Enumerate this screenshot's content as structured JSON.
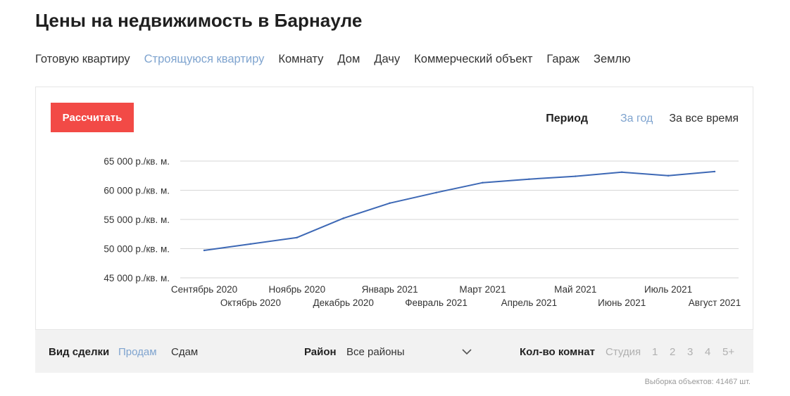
{
  "page": {
    "title": "Цены на недвижимость в Барнауле"
  },
  "tabs": [
    {
      "label": "Готовую квартиру",
      "active": false
    },
    {
      "label": "Строящуюся квартиру",
      "active": true
    },
    {
      "label": "Комнату",
      "active": false
    },
    {
      "label": "Дом",
      "active": false
    },
    {
      "label": "Дачу",
      "active": false
    },
    {
      "label": "Коммерческий объект",
      "active": false
    },
    {
      "label": "Гараж",
      "active": false
    },
    {
      "label": "Землю",
      "active": false
    }
  ],
  "calculate_label": "Рассчитать",
  "period": {
    "label": "Период",
    "options": [
      {
        "label": "За год",
        "active": true
      },
      {
        "label": "За все время",
        "active": false
      }
    ]
  },
  "colors": {
    "accent": "#f24a46",
    "active_link": "#7fa4cf",
    "line": "#3d68b5",
    "grid": "#d6d6d6"
  },
  "chart_data": {
    "type": "line",
    "categories": [
      "Сентябрь 2020",
      "Октябрь 2020",
      "Ноябрь 2020",
      "Декабрь 2020",
      "Январь 2021",
      "Февраль 2021",
      "Март 2021",
      "Апрель 2021",
      "Май 2021",
      "Июнь 2021",
      "Июль 2021",
      "Август 2021"
    ],
    "series": [
      {
        "values": [
          49700,
          50800,
          51900,
          55200,
          57800,
          59600,
          61300,
          61900,
          62400,
          63100,
          62500,
          63200
        ]
      }
    ],
    "ylim": [
      45000,
      65000
    ],
    "yticks": [
      45000,
      50000,
      55000,
      60000,
      65000
    ],
    "ytick_labels": [
      "45 000 р./кв. м.",
      "50 000 р./кв. м.",
      "55 000 р./кв. м.",
      "60 000 р./кв. м.",
      "65 000 р./кв. м."
    ],
    "grid": true,
    "legend": false
  },
  "filters": {
    "deal": {
      "label": "Вид сделки",
      "options": [
        {
          "label": "Продам",
          "active": true
        },
        {
          "label": "Сдам",
          "active": false
        }
      ]
    },
    "district": {
      "label": "Район",
      "value": "Все районы"
    },
    "rooms": {
      "label": "Кол-во комнат",
      "options": [
        "Студия",
        "1",
        "2",
        "3",
        "4",
        "5+"
      ]
    }
  },
  "sample_text": "Выборка объектов: 41467 шт."
}
